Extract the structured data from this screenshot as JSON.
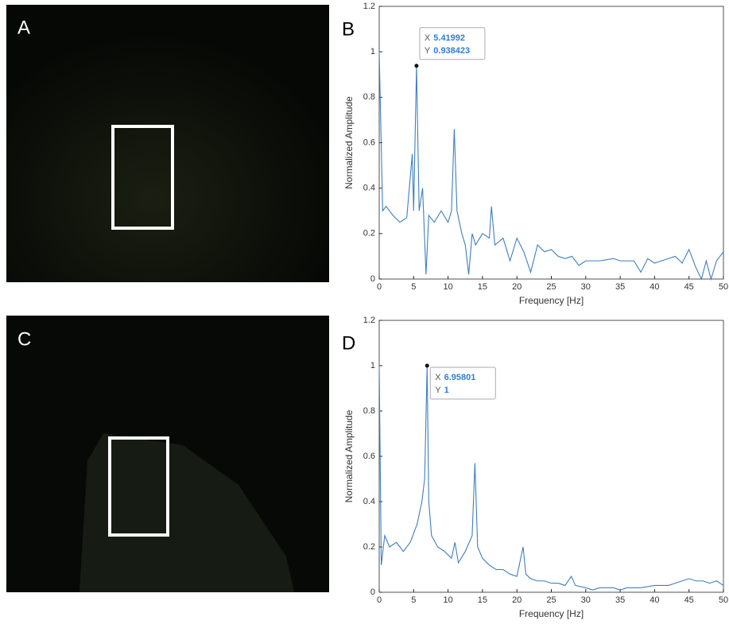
{
  "images": [
    {
      "label": "A"
    },
    {
      "label": "C"
    }
  ],
  "chart_data": [
    {
      "type": "line",
      "label": "B",
      "x_label": "Frequency [Hz]",
      "y_label": "Normalized Amplitude",
      "xlim": [
        0,
        50
      ],
      "xticks": [
        0,
        5,
        10,
        15,
        20,
        25,
        30,
        35,
        40,
        45,
        50
      ],
      "ylim": [
        0,
        1.2
      ],
      "yticks": [
        0,
        0.2,
        0.4,
        0.6,
        0.8,
        1,
        1.2
      ],
      "series": [
        {
          "color": "#3f7fc0",
          "x": [
            0,
            0.5,
            1,
            2,
            3,
            4,
            4.8,
            5,
            5.41992,
            5.8,
            6.3,
            6.8,
            7.2,
            8,
            9,
            10,
            10.5,
            10.9,
            11.3,
            12,
            12.5,
            13,
            13.5,
            14,
            15,
            16,
            16.3,
            16.8,
            18,
            19,
            20,
            21,
            22,
            23,
            24,
            25,
            26,
            27,
            28,
            29,
            30,
            32,
            34,
            35,
            37,
            38,
            39,
            40,
            42,
            43,
            44,
            45,
            46,
            46.8,
            47.5,
            48.2,
            49,
            50
          ],
          "values": [
            1.0,
            0.3,
            0.32,
            0.28,
            0.25,
            0.27,
            0.55,
            0.3,
            0.938423,
            0.3,
            0.4,
            0.02,
            0.28,
            0.25,
            0.3,
            0.25,
            0.3,
            0.66,
            0.3,
            0.2,
            0.15,
            0.02,
            0.2,
            0.15,
            0.2,
            0.18,
            0.32,
            0.15,
            0.18,
            0.08,
            0.18,
            0.12,
            0.03,
            0.15,
            0.12,
            0.13,
            0.1,
            0.09,
            0.1,
            0.06,
            0.08,
            0.08,
            0.09,
            0.08,
            0.08,
            0.03,
            0.09,
            0.07,
            0.09,
            0.1,
            0.07,
            0.13,
            0.05,
            0.0,
            0.08,
            0.0,
            0.08,
            0.12
          ]
        }
      ],
      "datatip": {
        "x_name": "X",
        "x": 5.41992,
        "y_name": "Y",
        "y": 0.938423
      }
    },
    {
      "type": "line",
      "label": "D",
      "x_label": "Frequency [Hz]",
      "y_label": "Normalized Amplitude",
      "xlim": [
        0,
        50
      ],
      "xticks": [
        0,
        5,
        10,
        15,
        20,
        25,
        30,
        35,
        40,
        45,
        50
      ],
      "ylim": [
        0,
        1.2
      ],
      "yticks": [
        0,
        0.2,
        0.4,
        0.6,
        0.8,
        1,
        1.2
      ],
      "series": [
        {
          "color": "#3f7fc0",
          "x": [
            0,
            0.3,
            0.8,
            1.5,
            2.5,
            3.5,
            4.5,
            5.5,
            6.2,
            6.6,
            6.95801,
            7.2,
            7.6,
            8.5,
            9.5,
            10.5,
            11,
            11.5,
            12.5,
            13.5,
            13.9,
            14.3,
            15,
            16,
            17,
            18,
            19,
            20,
            20.9,
            21.3,
            22,
            23,
            24,
            25,
            26,
            27,
            27.9,
            28.5,
            30,
            31,
            32,
            34,
            35,
            36,
            38,
            40,
            42,
            43,
            44,
            45,
            46,
            47,
            48,
            49,
            50
          ],
          "values": [
            1.0,
            0.12,
            0.25,
            0.2,
            0.22,
            0.18,
            0.22,
            0.3,
            0.4,
            0.5,
            1,
            0.4,
            0.25,
            0.2,
            0.18,
            0.15,
            0.22,
            0.13,
            0.18,
            0.25,
            0.57,
            0.2,
            0.15,
            0.12,
            0.1,
            0.1,
            0.08,
            0.07,
            0.2,
            0.08,
            0.06,
            0.05,
            0.05,
            0.04,
            0.04,
            0.03,
            0.07,
            0.03,
            0.02,
            0.01,
            0.02,
            0.02,
            0.01,
            0.02,
            0.02,
            0.03,
            0.03,
            0.04,
            0.05,
            0.06,
            0.05,
            0.05,
            0.04,
            0.05,
            0.03
          ]
        }
      ],
      "datatip": {
        "x_name": "X",
        "x": 6.95801,
        "y_name": "Y",
        "y": 1
      }
    }
  ]
}
